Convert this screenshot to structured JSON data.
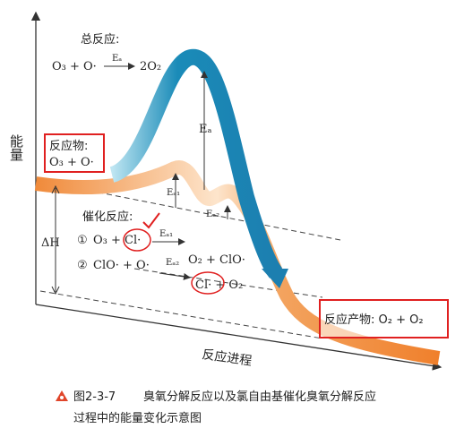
{
  "axes": {
    "y_label": "能量",
    "x_label": "反应进程"
  },
  "overall": {
    "title": "总反应:",
    "reactants": "O₃ + O·",
    "arrow_label": "Eₐ",
    "products": "2O₂"
  },
  "reactant_box": {
    "title": "反应物:",
    "formula": "O₃ + O·"
  },
  "energy_labels": {
    "ea": "Eₐ",
    "ea1": "Eₐ₁",
    "ea2": "Eₐ₂",
    "delta_h": "ΔH"
  },
  "catalytic": {
    "title": "催化反应:",
    "step1": {
      "number": "①",
      "reactants": "O₃ + Cl·",
      "arrow_label": "Eₐ₁",
      "products": "O₂ + ClO·"
    },
    "step2": {
      "number": "②",
      "reactants": "ClO· + O·",
      "arrow_label": "Eₐ₂",
      "products": "Cl· + O₂"
    }
  },
  "product_box": {
    "text": "反应产物: O₂ + O₂"
  },
  "caption": {
    "figure": "图2-3-7",
    "line1": "臭氧分解反应以及氯自由基催化臭氧分解反应",
    "line2": "过程中的能量变化示意图"
  }
}
